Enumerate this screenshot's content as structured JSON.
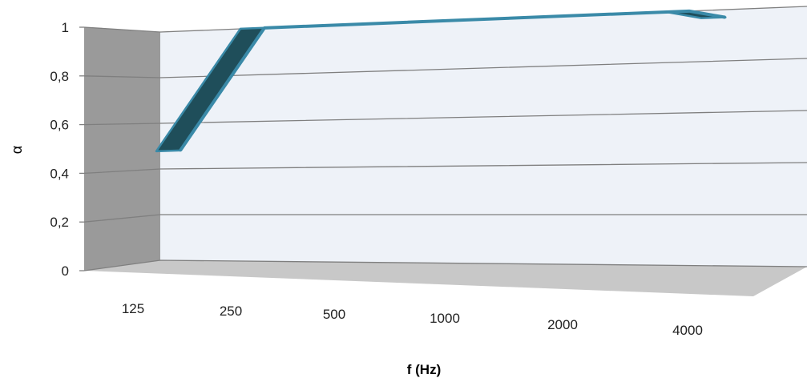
{
  "chart_data": {
    "type": "area",
    "title": "",
    "xlabel": "f (Hz)",
    "ylabel": "α",
    "categories": [
      "125",
      "250",
      "500",
      "1000",
      "2000",
      "4000"
    ],
    "series": [
      {
        "values": [
          0.48,
          1.0,
          1.0,
          1.0,
          1.0,
          0.97
        ]
      }
    ],
    "yticks": [
      "0",
      "0,2",
      "0,4",
      "0,6",
      "0,8",
      "1"
    ],
    "ylim": [
      0,
      1
    ],
    "grid": true,
    "legend": "none",
    "colors": {
      "series_fill": "#1f4e5a",
      "series_edge": "#3a8aa8",
      "back_wall": "#eef2f8",
      "side_wall": "#9a9a9a",
      "floor": "#c8c8c8",
      "gridline": "#7f7f7f"
    }
  }
}
